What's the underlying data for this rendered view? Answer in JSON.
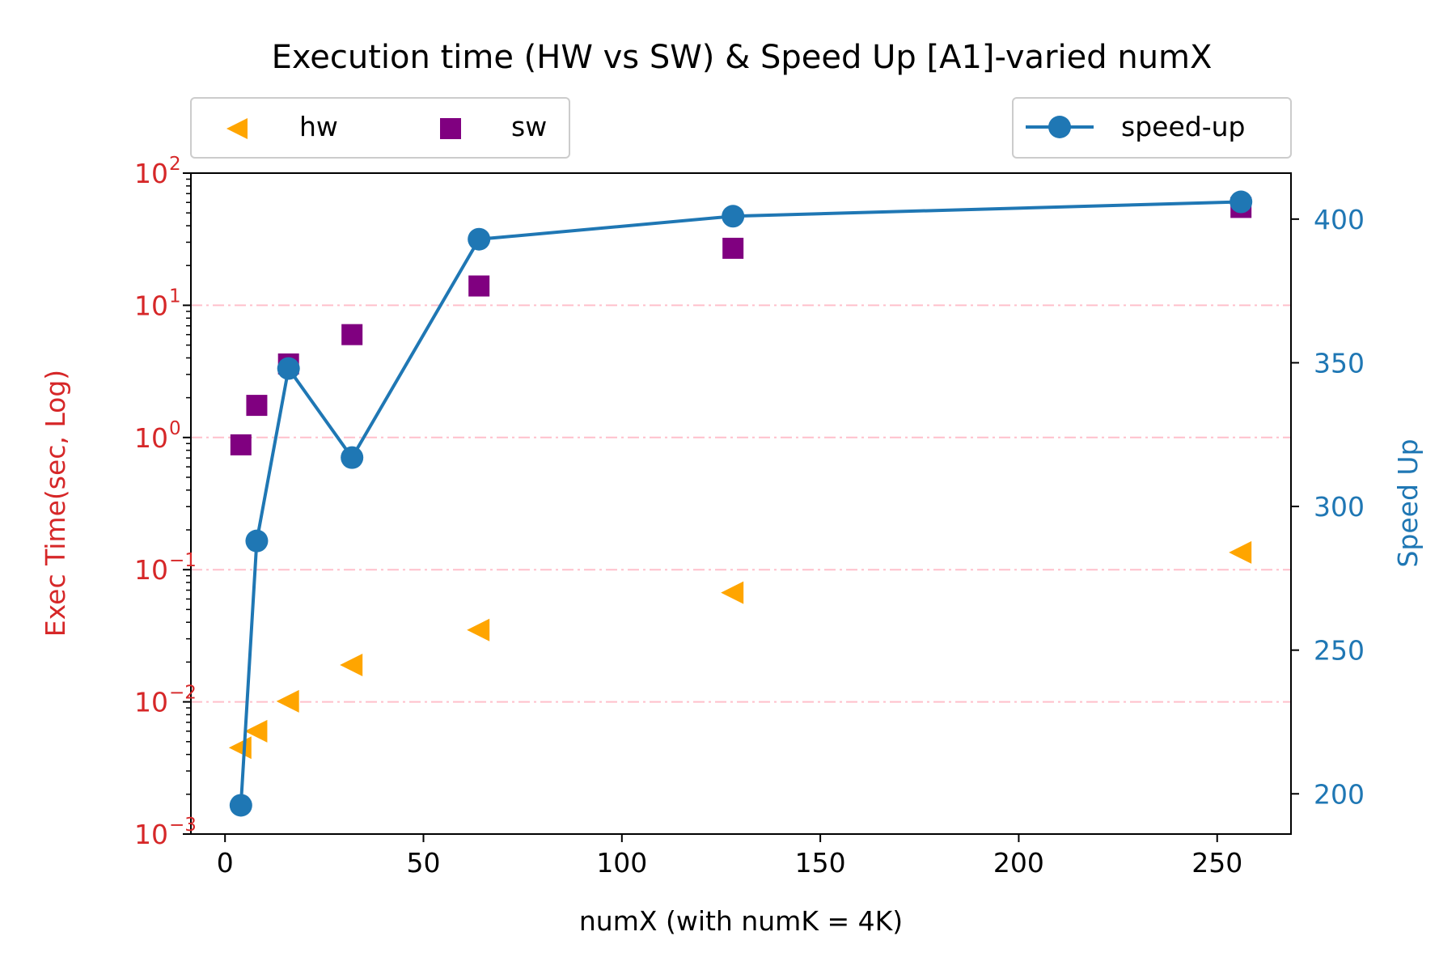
{
  "chart_data": {
    "type": "scatter",
    "title": "Execution time (HW vs SW) & Speed Up [A1]-varied numX",
    "xlabel": "numX (with numK = 4K)",
    "ylabel_left": "Exec Time(sec, Log)",
    "ylabel_right": "Speed Up",
    "x_ticks": [
      "0",
      "50",
      "100",
      "150",
      "200",
      "250"
    ],
    "x_tick_values": [
      0,
      50,
      100,
      150,
      200,
      250
    ],
    "xlim": [
      -8.6,
      268.6
    ],
    "y_left_scale": "log",
    "y_left_lim": [
      0.001,
      100
    ],
    "y_left_ticks": [
      {
        "value": 0.001,
        "base": "10",
        "exp": "−3"
      },
      {
        "value": 0.01,
        "base": "10",
        "exp": "−2"
      },
      {
        "value": 0.1,
        "base": "10",
        "exp": "−1"
      },
      {
        "value": 1,
        "base": "10",
        "exp": "0"
      },
      {
        "value": 10,
        "base": "10",
        "exp": "1"
      },
      {
        "value": 100,
        "base": "10",
        "exp": "2"
      }
    ],
    "y_right_lim": [
      186,
      416
    ],
    "y_right_ticks": [
      "200",
      "250",
      "300",
      "350",
      "400"
    ],
    "y_right_tick_values": [
      200,
      250,
      300,
      350,
      400
    ],
    "grid": "horizontal dash-dot at left-axis decades",
    "colors": {
      "left_axis": "#d62728",
      "right_axis": "#1f77b4",
      "hw": "#ffa500",
      "sw": "#800080",
      "speedup": "#1f77b4",
      "grid": "#ffc0cb"
    },
    "series": [
      {
        "name": "hw",
        "axis": "left",
        "marker": "triangle-left",
        "x": [
          4,
          8,
          16,
          32,
          64,
          128,
          256
        ],
        "y": [
          0.0045,
          0.006,
          0.0101,
          0.019,
          0.035,
          0.067,
          0.135
        ]
      },
      {
        "name": "sw",
        "axis": "left",
        "marker": "square",
        "x": [
          4,
          8,
          16,
          32,
          64,
          128,
          256
        ],
        "y": [
          0.88,
          1.75,
          3.6,
          6.0,
          14.0,
          27.0,
          55.0
        ]
      },
      {
        "name": "speed-up",
        "axis": "right",
        "marker": "circle-line",
        "x": [
          4,
          8,
          16,
          32,
          64,
          128,
          256
        ],
        "y": [
          196,
          288,
          348,
          317,
          393,
          401,
          406
        ]
      }
    ],
    "legends": [
      {
        "placement": "top-left",
        "entries": [
          "hw",
          "sw"
        ]
      },
      {
        "placement": "top-right",
        "entries": [
          "speed-up"
        ]
      }
    ]
  }
}
